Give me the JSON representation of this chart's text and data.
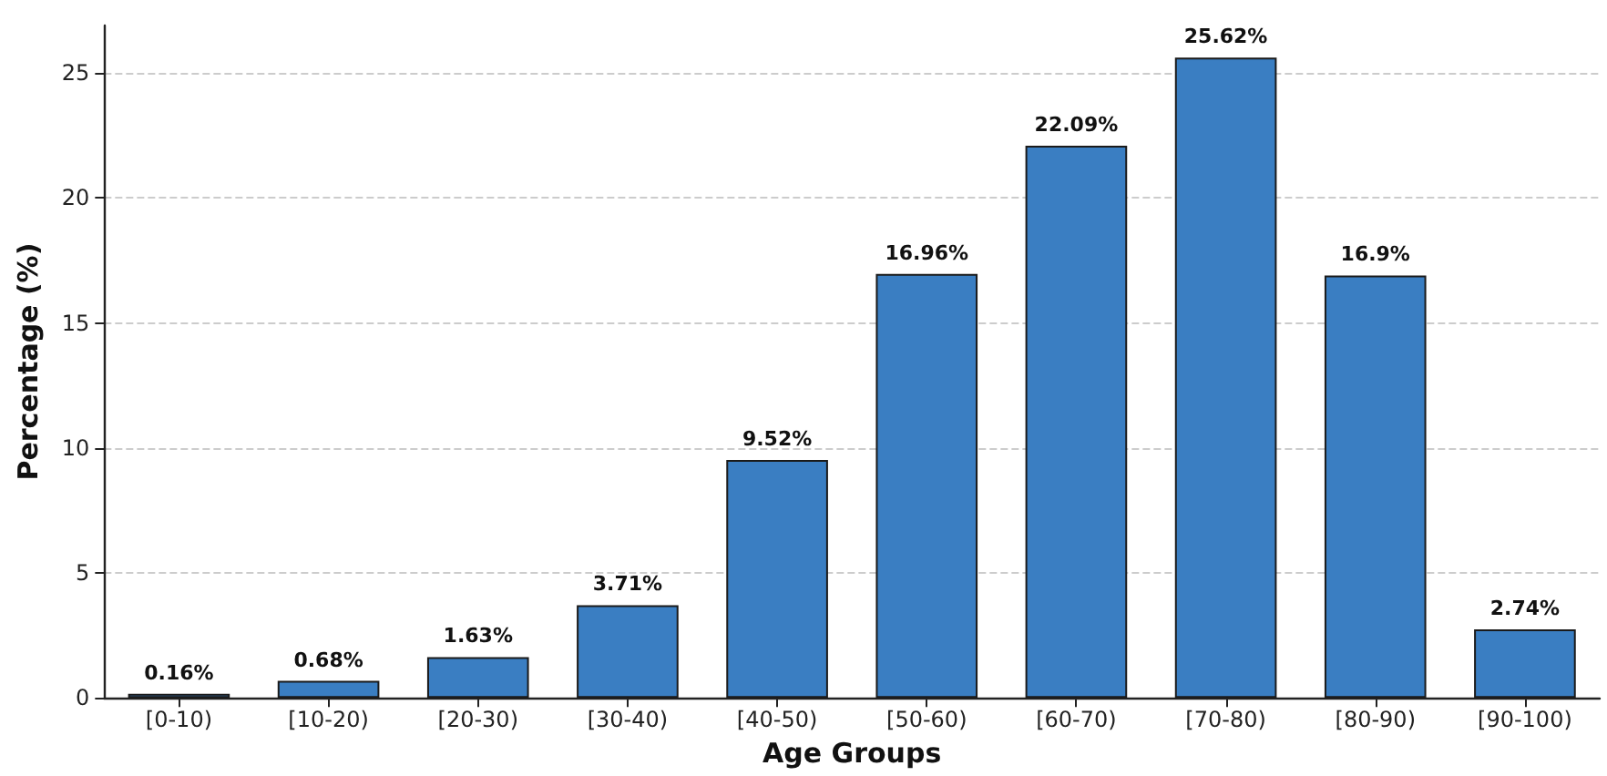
{
  "chart_data": {
    "type": "bar",
    "xlabel": "Age Groups",
    "ylabel": "Percentage (%)",
    "categories": [
      "[0-10)",
      "[10-20)",
      "[20-30)",
      "[30-40)",
      "[40-50)",
      "[50-60)",
      "[60-70)",
      "[70-80)",
      "[80-90)",
      "[90-100)"
    ],
    "values": [
      0.16,
      0.68,
      1.63,
      3.71,
      9.52,
      16.96,
      22.09,
      25.62,
      16.9,
      2.74
    ],
    "value_labels": [
      "0.16%",
      "0.68%",
      "1.63%",
      "3.71%",
      "9.52%",
      "16.96%",
      "22.09%",
      "25.62%",
      "16.9%",
      "2.74%"
    ],
    "color": "#3a7ec2",
    "ylim": [
      0,
      26.9
    ],
    "yticks": [
      0,
      5,
      10,
      15,
      20,
      25
    ],
    "grid": "y"
  }
}
